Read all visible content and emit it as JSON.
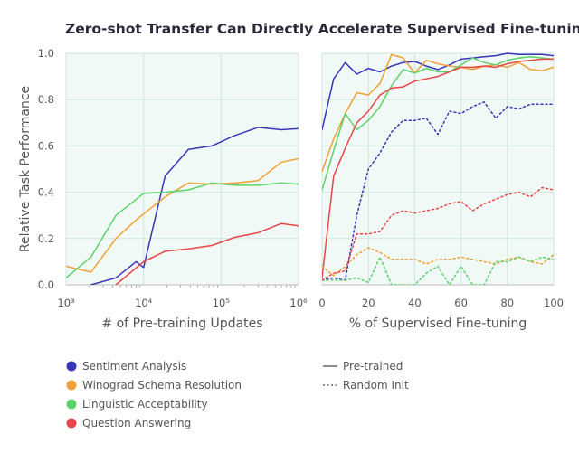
{
  "title": "Zero-shot Transfer Can Directly Accelerate Supervised Fine-tuning",
  "colors": {
    "panel_bg": "#f1f9f6",
    "grid": "#cfe5dc",
    "sentiment": "#3a36b8",
    "winograd": "#f0a035",
    "linguistic": "#5cd36a",
    "qa": "#e64646",
    "legend_line": "#666666"
  },
  "legend": {
    "tasks": [
      "Sentiment Analysis",
      "Winograd Schema Resolution",
      "Linguistic Acceptability",
      "Question Answering"
    ],
    "styles": [
      "Pre-trained",
      "Random Init"
    ]
  },
  "chart_data": [
    {
      "type": "line",
      "xlabel": "# of Pre-training Updates",
      "ylabel": "Relative Task Performance",
      "x_scale": "log",
      "xlim": [
        1000,
        1000000
      ],
      "ylim": [
        0,
        1.0
      ],
      "x_tick_labels": [
        "10³",
        "10⁴",
        "10⁵",
        "10⁶"
      ],
      "x_ticks": [
        1000,
        10000,
        100000,
        1000000
      ],
      "y_tick_labels": [
        "0.0",
        "0.2",
        "0.4",
        "0.6",
        "0.8",
        "1.0"
      ],
      "y_ticks": [
        0,
        0.2,
        0.4,
        0.6,
        0.8,
        1.0
      ],
      "grid": true,
      "series": [
        {
          "key": "sentiment",
          "x": [
            2100,
            4400,
            8000,
            10000,
            19000,
            38000,
            76000,
            150000,
            300000,
            600000,
            1000000
          ],
          "y": [
            0.0,
            0.03,
            0.1,
            0.075,
            0.47,
            0.585,
            0.6,
            0.645,
            0.68,
            0.67,
            0.675
          ]
        },
        {
          "key": "winograd",
          "x": [
            1000,
            2100,
            4400,
            8000,
            19000,
            38000,
            76000,
            150000,
            300000,
            600000,
            1000000
          ],
          "y": [
            0.08,
            0.055,
            0.2,
            0.28,
            0.38,
            0.44,
            0.435,
            0.44,
            0.45,
            0.53,
            0.545
          ]
        },
        {
          "key": "linguistic",
          "x": [
            1000,
            2100,
            4400,
            10000,
            19000,
            38000,
            76000,
            150000,
            300000,
            600000,
            1000000
          ],
          "y": [
            0.03,
            0.12,
            0.3,
            0.395,
            0.4,
            0.41,
            0.44,
            0.43,
            0.43,
            0.44,
            0.435
          ]
        },
        {
          "key": "qa",
          "x": [
            4400,
            10000,
            19000,
            38000,
            76000,
            150000,
            300000,
            600000,
            1000000
          ],
          "y": [
            0.0,
            0.1,
            0.145,
            0.155,
            0.17,
            0.205,
            0.225,
            0.265,
            0.255
          ]
        }
      ]
    },
    {
      "type": "line",
      "xlabel": "% of Supervised Fine-tuning",
      "ylabel": "",
      "x_scale": "linear",
      "xlim": [
        0,
        100
      ],
      "ylim": [
        0,
        1.0
      ],
      "x_tick_labels": [
        "0",
        "20",
        "40",
        "60",
        "80",
        "100"
      ],
      "x_ticks": [
        0,
        20,
        40,
        60,
        80,
        100
      ],
      "grid": true,
      "series": [
        {
          "key": "sentiment",
          "style": "Pre-trained",
          "x": [
            0,
            5,
            10,
            15,
            20,
            25,
            30,
            35,
            40,
            45,
            50,
            55,
            60,
            65,
            70,
            75,
            80,
            85,
            90,
            95,
            100
          ],
          "y": [
            0.67,
            0.89,
            0.96,
            0.91,
            0.935,
            0.92,
            0.945,
            0.96,
            0.965,
            0.945,
            0.93,
            0.95,
            0.975,
            0.98,
            0.985,
            0.99,
            1.0,
            0.995,
            0.995,
            0.995,
            0.99
          ]
        },
        {
          "key": "winograd",
          "style": "Pre-trained",
          "x": [
            0,
            5,
            10,
            15,
            20,
            25,
            30,
            35,
            40,
            45,
            50,
            55,
            60,
            65,
            70,
            75,
            80,
            85,
            90,
            95,
            100
          ],
          "y": [
            0.49,
            0.63,
            0.74,
            0.83,
            0.82,
            0.87,
            0.995,
            0.98,
            0.915,
            0.97,
            0.955,
            0.945,
            0.94,
            0.93,
            0.945,
            0.95,
            0.94,
            0.96,
            0.93,
            0.925,
            0.94
          ]
        },
        {
          "key": "linguistic",
          "style": "Pre-trained",
          "x": [
            0,
            5,
            10,
            15,
            20,
            25,
            30,
            35,
            40,
            45,
            50,
            55,
            60,
            65,
            70,
            75,
            80,
            85,
            90,
            95,
            100
          ],
          "y": [
            0.41,
            0.58,
            0.74,
            0.67,
            0.71,
            0.77,
            0.86,
            0.93,
            0.915,
            0.935,
            0.92,
            0.92,
            0.95,
            0.98,
            0.96,
            0.95,
            0.97,
            0.98,
            0.985,
            0.98,
            0.975
          ]
        },
        {
          "key": "qa",
          "style": "Pre-trained",
          "x": [
            0,
            5,
            10,
            15,
            20,
            25,
            30,
            35,
            40,
            45,
            50,
            55,
            60,
            65,
            70,
            75,
            80,
            85,
            90,
            95,
            100
          ],
          "y": [
            0.03,
            0.47,
            0.59,
            0.7,
            0.75,
            0.82,
            0.85,
            0.855,
            0.88,
            0.89,
            0.9,
            0.92,
            0.94,
            0.94,
            0.945,
            0.94,
            0.955,
            0.965,
            0.97,
            0.975,
            0.975
          ]
        },
        {
          "key": "sentiment",
          "style": "Random Init",
          "x": [
            0,
            5,
            10,
            15,
            20,
            25,
            30,
            35,
            40,
            45,
            50,
            55,
            60,
            65,
            70,
            75,
            80,
            85,
            90,
            95,
            100
          ],
          "y": [
            0.02,
            0.03,
            0.02,
            0.3,
            0.5,
            0.57,
            0.66,
            0.71,
            0.71,
            0.72,
            0.65,
            0.75,
            0.74,
            0.77,
            0.79,
            0.72,
            0.77,
            0.76,
            0.78,
            0.78,
            0.78
          ]
        },
        {
          "key": "winograd",
          "style": "Random Init",
          "x": [
            0,
            5,
            10,
            15,
            20,
            25,
            30,
            35,
            40,
            45,
            50,
            55,
            60,
            65,
            70,
            75,
            80,
            85,
            90,
            95,
            100
          ],
          "y": [
            0.08,
            0.04,
            0.08,
            0.13,
            0.16,
            0.14,
            0.11,
            0.11,
            0.11,
            0.09,
            0.11,
            0.11,
            0.12,
            0.11,
            0.1,
            0.09,
            0.11,
            0.12,
            0.1,
            0.09,
            0.13
          ]
        },
        {
          "key": "linguistic",
          "style": "Random Init",
          "x": [
            0,
            5,
            10,
            15,
            20,
            25,
            30,
            35,
            40,
            45,
            50,
            55,
            60,
            65,
            70,
            75,
            80,
            85,
            90,
            95,
            100
          ],
          "y": [
            0.02,
            0.02,
            0.02,
            0.03,
            0.01,
            0.12,
            0.0,
            0.0,
            0.0,
            0.05,
            0.08,
            0.0,
            0.08,
            0.0,
            0.0,
            0.1,
            0.1,
            0.12,
            0.1,
            0.12,
            0.11
          ]
        },
        {
          "key": "qa",
          "style": "Random Init",
          "x": [
            0,
            5,
            10,
            15,
            20,
            25,
            30,
            35,
            40,
            45,
            50,
            55,
            60,
            65,
            70,
            75,
            80,
            85,
            90,
            95,
            100
          ],
          "y": [
            0.02,
            0.05,
            0.06,
            0.22,
            0.22,
            0.23,
            0.3,
            0.32,
            0.31,
            0.32,
            0.33,
            0.35,
            0.36,
            0.32,
            0.35,
            0.37,
            0.39,
            0.4,
            0.38,
            0.42,
            0.41
          ]
        }
      ]
    }
  ]
}
